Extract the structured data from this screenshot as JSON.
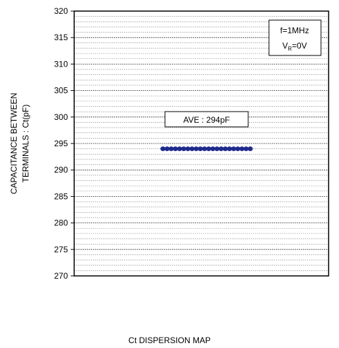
{
  "chart_data": {
    "type": "scatter",
    "title": "",
    "xlabel": "",
    "ylabel": [
      "CAPACITANCE BETWEEN",
      "TERMINALS : Ct(pF)"
    ],
    "ylim": [
      270,
      320
    ],
    "y_ticks": [
      270,
      275,
      280,
      285,
      290,
      295,
      300,
      305,
      310,
      315,
      320
    ],
    "y_minor_step": 1,
    "grid": true,
    "legend": "none",
    "series": [
      {
        "color": "#1f2a8c",
        "x": [
          1,
          2,
          3,
          4,
          5,
          6,
          7,
          8,
          9,
          10,
          11,
          12,
          13,
          14,
          15,
          16,
          17,
          18,
          19,
          20,
          21,
          22
        ],
        "y": [
          294,
          294,
          294,
          294,
          294,
          294,
          294,
          294,
          294,
          294,
          294,
          294,
          294,
          294,
          294,
          294,
          294,
          294,
          294,
          294,
          294,
          294
        ]
      }
    ],
    "annotations": {
      "conditions": {
        "line1": "f=1MHz",
        "line2_main": "V",
        "line2_sub": "R",
        "line2_rest": "=0V",
        "position": "top-right"
      },
      "average": {
        "text": "AVE : 294pF"
      }
    }
  },
  "caption": "Ct DISPERSION MAP"
}
